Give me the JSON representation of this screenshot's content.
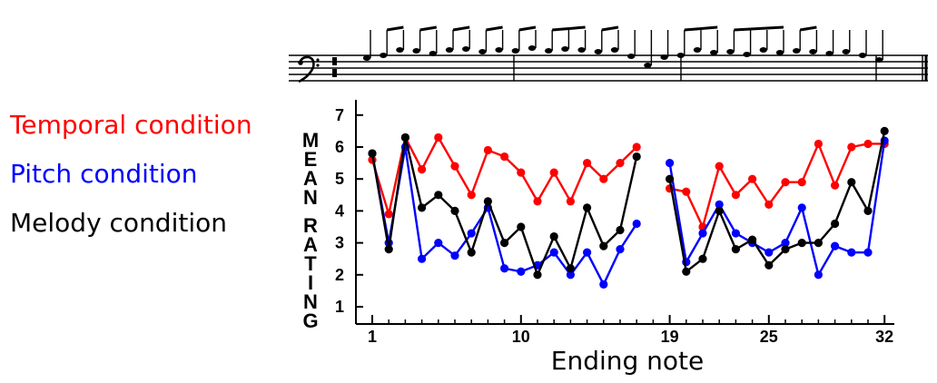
{
  "legend": [
    {
      "label": "Temporal condition",
      "color": "#ff0000"
    },
    {
      "label": "Pitch condition",
      "color": "#0000ff"
    },
    {
      "label": "Melody condition",
      "color": "#000000"
    }
  ],
  "chart_data": {
    "type": "line",
    "ylabel": "MEAN RATING",
    "xlabel": "Ending note",
    "ylim": [
      1,
      7
    ],
    "yticks": [
      1,
      2,
      3,
      4,
      5,
      6,
      7
    ],
    "xlim": [
      1,
      32
    ],
    "xticks": [
      1,
      10,
      19,
      25,
      32
    ],
    "segments": [
      [
        1,
        18
      ],
      [
        19,
        32
      ]
    ],
    "series": [
      {
        "name": "Temporal condition",
        "color": "#ff0000",
        "x": [
          1,
          2,
          3,
          4,
          5,
          6,
          7,
          8,
          9,
          10,
          11,
          12,
          13,
          14,
          15,
          16,
          17,
          18,
          19,
          20,
          21,
          22,
          23,
          24,
          25,
          26,
          27,
          28,
          29,
          30,
          31,
          32
        ],
        "values": [
          5.6,
          3.9,
          6.3,
          5.3,
          6.3,
          5.4,
          4.5,
          5.9,
          5.7,
          5.2,
          4.3,
          5.2,
          4.3,
          5.5,
          5.0,
          5.5,
          6.0,
          null,
          4.7,
          4.6,
          3.5,
          5.4,
          4.5,
          5.0,
          4.2,
          4.9,
          4.9,
          6.1,
          4.8,
          6.0,
          6.1,
          6.1
        ]
      },
      {
        "name": "Pitch condition",
        "color": "#0000ff",
        "x": [
          1,
          2,
          3,
          4,
          5,
          6,
          7,
          8,
          9,
          10,
          11,
          12,
          13,
          14,
          15,
          16,
          17,
          18,
          19,
          20,
          21,
          22,
          23,
          24,
          25,
          26,
          27,
          28,
          29,
          30,
          31,
          32
        ],
        "values": [
          5.8,
          3.0,
          6.0,
          2.5,
          3.0,
          2.6,
          3.3,
          4.1,
          2.2,
          2.1,
          2.3,
          2.7,
          2.0,
          2.7,
          1.7,
          2.8,
          3.6,
          null,
          5.5,
          2.4,
          3.3,
          4.2,
          3.3,
          3.0,
          2.7,
          3.0,
          4.1,
          2.0,
          2.9,
          2.7,
          2.7,
          6.2
        ]
      },
      {
        "name": "Melody condition",
        "color": "#000000",
        "x": [
          1,
          2,
          3,
          4,
          5,
          6,
          7,
          8,
          9,
          10,
          11,
          12,
          13,
          14,
          15,
          16,
          17,
          18,
          19,
          20,
          21,
          22,
          23,
          24,
          25,
          26,
          27,
          28,
          29,
          30,
          31,
          32
        ],
        "values": [
          5.8,
          2.8,
          6.3,
          4.1,
          4.5,
          4.0,
          2.7,
          4.3,
          3.0,
          3.5,
          2.0,
          3.2,
          2.2,
          4.1,
          2.9,
          3.4,
          5.7,
          null,
          5.0,
          2.1,
          2.5,
          4.0,
          2.8,
          3.1,
          2.3,
          2.8,
          3.0,
          3.0,
          3.6,
          4.9,
          4.0,
          6.5
        ]
      }
    ]
  }
}
